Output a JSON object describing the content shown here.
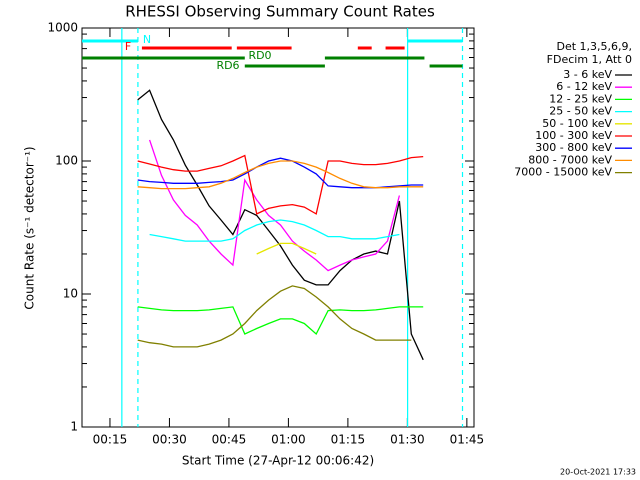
{
  "chart_data": {
    "type": "line",
    "title": "RHESSI Observing Summary Count Rates",
    "x_label": "Start Time (27-Apr-12 00:06:42)",
    "y_label": "Count Rate (s⁻¹ detector⁻¹)",
    "footer": "20-Oct-2021 17:33",
    "legend_header": [
      "Det 1,3,5,6,9,",
      "FDecim 1, Att 0"
    ],
    "log_y": true,
    "xlim": [
      7.95,
      106.8
    ],
    "ylim": [
      1,
      1000
    ],
    "xticks": [
      {
        "value": 15,
        "label": "00:15"
      },
      {
        "value": 30,
        "label": "00:30"
      },
      {
        "value": 45,
        "label": "00:45"
      },
      {
        "value": 60,
        "label": "01:00"
      },
      {
        "value": 75,
        "label": "01:15"
      },
      {
        "value": 90,
        "label": "01:30"
      },
      {
        "value": 105,
        "label": "01:45"
      }
    ],
    "yticks": [
      1,
      10,
      100,
      1000
    ],
    "x": [
      22,
      25,
      28,
      31,
      34,
      37,
      40,
      43,
      46,
      49,
      52,
      55,
      58,
      61,
      64,
      67,
      70,
      73,
      76,
      79,
      82,
      85,
      88,
      91,
      94
    ],
    "series": [
      {
        "name": "3 - 6 keV",
        "color": "#000000",
        "values": [
          288,
          340,
          205,
          144,
          93,
          66,
          46,
          36,
          28,
          43,
          39,
          30,
          23,
          16.5,
          12.7,
          11.7,
          11.7,
          15,
          18,
          20,
          21,
          20,
          50,
          5,
          3.2
        ]
      },
      {
        "name": "6 - 12 keV",
        "color": "#ff00ff",
        "values": [
          null,
          144,
          78,
          51,
          39,
          33,
          25,
          20,
          16.5,
          72,
          51,
          39,
          33,
          25,
          21,
          18,
          15,
          16.5,
          18,
          19,
          20,
          25,
          55,
          null,
          null
        ]
      },
      {
        "name": "12 - 25 keV",
        "color": "#00ff00",
        "values": [
          8,
          7.8,
          7.6,
          7.5,
          7.5,
          7.5,
          7.6,
          7.8,
          8,
          5,
          5.5,
          6,
          6.5,
          6.5,
          6,
          5,
          7.5,
          7.6,
          7.5,
          7.5,
          7.6,
          7.8,
          8,
          8,
          8
        ]
      },
      {
        "name": "25 - 50 keV",
        "color": "#00ffff",
        "values": [
          null,
          28,
          27,
          26,
          25,
          25,
          25,
          25,
          26,
          30,
          33,
          35,
          36,
          35,
          33,
          30,
          27,
          27,
          26,
          26,
          26,
          27,
          28,
          null,
          null
        ]
      },
      {
        "name": "50 - 100 keV",
        "color": "#e6e600",
        "values": [
          null,
          null,
          null,
          null,
          null,
          null,
          null,
          null,
          null,
          null,
          20,
          22,
          24,
          24,
          22,
          20,
          null,
          null,
          null,
          null,
          null,
          null,
          null,
          null,
          null
        ]
      },
      {
        "name": "100 - 300 keV",
        "color": "#ff0000",
        "values": [
          100,
          95,
          90,
          86,
          84,
          84,
          88,
          92,
          100,
          110,
          40,
          44,
          46,
          47,
          45,
          40,
          100,
          100,
          96,
          94,
          94,
          96,
          100,
          106,
          108
        ]
      },
      {
        "name": "300 - 800 keV",
        "color": "#0000ff",
        "values": [
          72,
          70,
          69,
          68,
          68,
          68,
          69,
          70,
          72,
          80,
          90,
          100,
          105,
          100,
          90,
          80,
          65,
          64,
          63,
          63,
          63,
          64,
          65,
          66,
          66
        ]
      },
      {
        "name": "800 - 7000 keV",
        "color": "#ff8c00",
        "values": [
          64,
          63,
          62,
          62,
          62,
          63,
          64,
          68,
          74,
          82,
          90,
          96,
          100,
          100,
          96,
          90,
          82,
          74,
          68,
          64,
          63,
          63,
          64,
          64,
          64
        ]
      },
      {
        "name": "7000 - 15000 keV",
        "color": "#808000",
        "values": [
          4.5,
          4.3,
          4.2,
          4,
          4,
          4,
          4.2,
          4.5,
          5,
          6,
          7.5,
          9,
          10.5,
          11.5,
          11,
          9.5,
          8,
          6.5,
          5.5,
          5,
          4.5,
          4.5,
          4.5,
          4.5,
          null
        ]
      }
    ],
    "vlines": [
      {
        "x": 18,
        "color": "#00ffff",
        "dashed": false
      },
      {
        "x": 22.05,
        "color": "#00ffff",
        "dashed": true
      },
      {
        "x": 90.06,
        "color": "#00ffff",
        "dashed": false
      },
      {
        "x": 103.9,
        "color": "#00ffff",
        "dashed": true
      }
    ],
    "flags": [
      {
        "label": "N",
        "color": "#00ffff",
        "intervals": [
          [
            7.95,
            22.05
          ],
          [
            90.06,
            103.9
          ]
        ]
      },
      {
        "label": "F",
        "color": "#ff0000",
        "intervals": [
          [
            23.06,
            45.7
          ],
          [
            47.0,
            60.8
          ],
          [
            77.5,
            81.0
          ],
          [
            84.5,
            89.3
          ]
        ]
      },
      {
        "label": "RD0",
        "color": "#008000",
        "intervals": [
          [
            7.95,
            49.0
          ],
          [
            69.2,
            94.3
          ]
        ]
      },
      {
        "label": "RD6",
        "color": "#008000",
        "intervals": [
          [
            49.0,
            69.2
          ],
          [
            95.6,
            103.9
          ]
        ]
      }
    ]
  }
}
